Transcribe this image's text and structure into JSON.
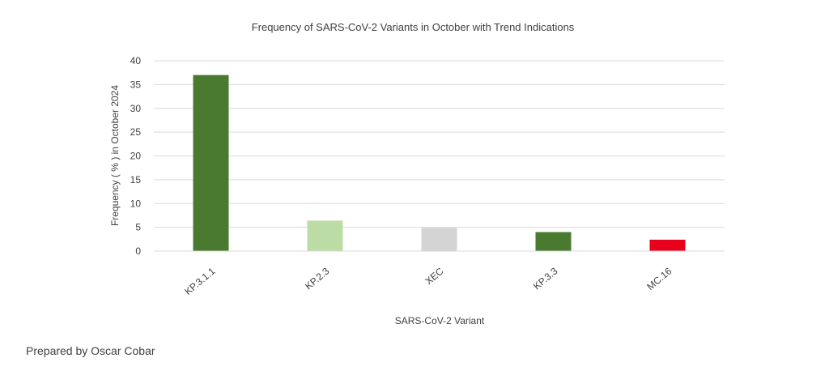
{
  "chart_data": {
    "type": "bar",
    "title": "Frequency of SARS-CoV-2 Variants in October with Trend Indications",
    "xlabel": "SARS-CoV-2 Variant",
    "ylabel": "Frequency  ( % ) in October 2024",
    "categories": [
      "KP.3.1.1",
      "KP.2.3",
      "XEC",
      "KP.3.3",
      "MC.16"
    ],
    "values": [
      37,
      6.4,
      4.9,
      4.0,
      2.4
    ],
    "colors": [
      "#4a7a30",
      "#bcdca6",
      "#d4d4d4",
      "#4a7a30",
      "#e8001c"
    ],
    "ylim": [
      0,
      40
    ],
    "yticks": [
      0,
      5,
      10,
      15,
      20,
      25,
      30,
      35,
      40
    ],
    "grid": true,
    "legend": "none"
  },
  "footer": {
    "credit": "Prepared by Oscar Cobar"
  }
}
